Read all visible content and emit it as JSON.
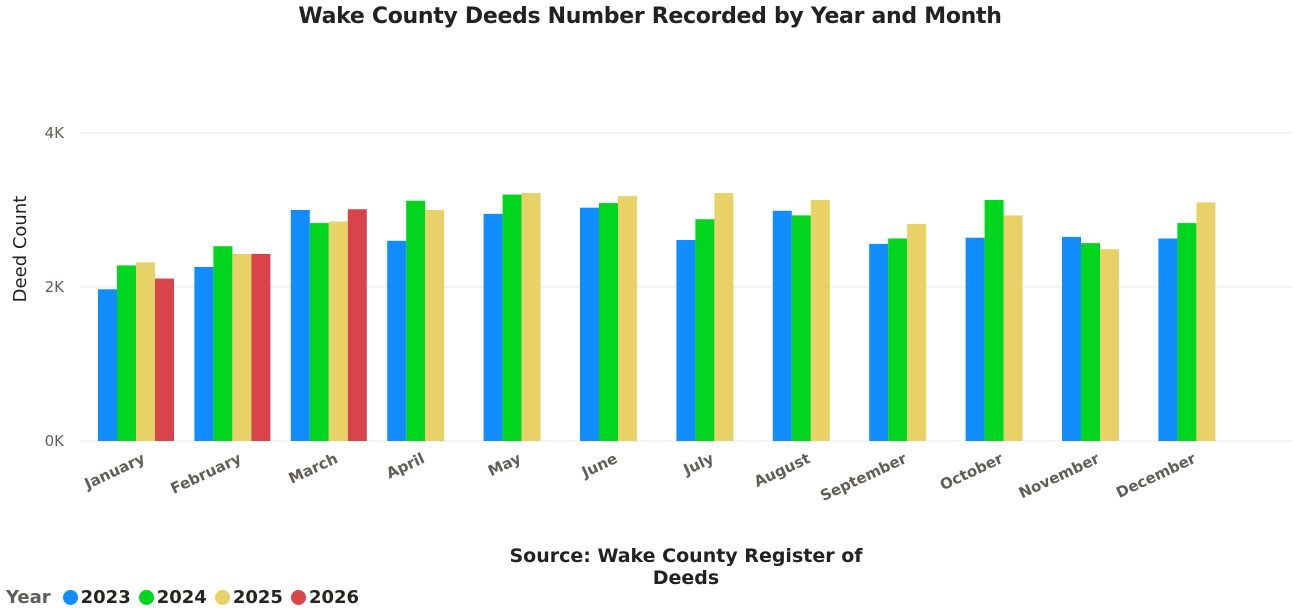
{
  "chart_data": {
    "type": "bar",
    "title": "Wake County Deeds Number Recorded by Year and Month",
    "ylabel": "Deed Count",
    "xlabel": "",
    "source": "Source: Wake County Register of Deeds",
    "ylim": [
      0,
      4000
    ],
    "yticks": [
      {
        "value": 0,
        "label": "0K"
      },
      {
        "value": 2000,
        "label": "2K"
      },
      {
        "value": 4000,
        "label": "4K"
      }
    ],
    "grid": true,
    "legend_position": "bottom-left",
    "legend_title": "Year",
    "categories": [
      "January",
      "February",
      "March",
      "April",
      "May",
      "June",
      "July",
      "August",
      "September",
      "October",
      "November",
      "December"
    ],
    "series": [
      {
        "name": "2023",
        "color": "#118DFF",
        "values": [
          1970,
          2260,
          3000,
          2600,
          2950,
          3030,
          2610,
          2990,
          2560,
          2640,
          2650,
          2630
        ]
      },
      {
        "name": "2024",
        "color": "#00D61E",
        "values": [
          2280,
          2530,
          2830,
          3120,
          3200,
          3090,
          2880,
          2930,
          2630,
          3130,
          2570,
          2830
        ]
      },
      {
        "name": "2025",
        "color": "#E8D166",
        "values": [
          2320,
          2430,
          2850,
          3000,
          3220,
          3180,
          3220,
          3130,
          2820,
          2930,
          2490,
          3100
        ]
      },
      {
        "name": "2026",
        "color": "#D9444B",
        "values": [
          2110,
          2430,
          3010,
          null,
          null,
          null,
          null,
          null,
          null,
          null,
          null,
          null
        ]
      }
    ]
  }
}
